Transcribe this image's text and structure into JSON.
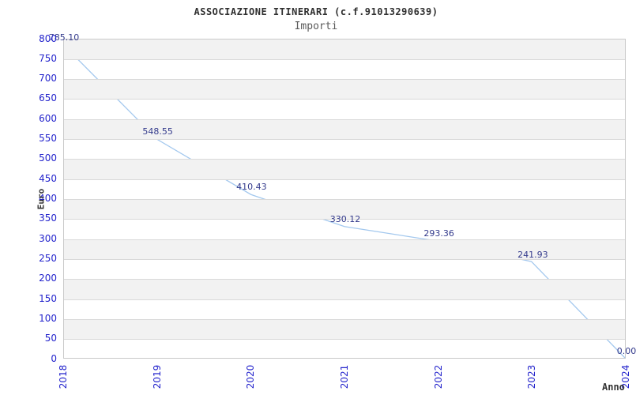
{
  "title": "ASSOCIAZIONE ITINERARI (c.f.91013290639)",
  "subtitle": "Importi",
  "chart_data": {
    "type": "line",
    "categories": [
      "2018",
      "2019",
      "2020",
      "2021",
      "2022",
      "2023",
      "2024"
    ],
    "values": [
      785.1,
      548.55,
      410.43,
      330.12,
      293.36,
      241.93,
      0.0
    ],
    "data_labels": [
      "785.10",
      "548.55",
      "410.43",
      "330.12",
      "293.36",
      "241.93",
      "0.00"
    ],
    "title": "ASSOCIAZIONE ITINERARI (c.f.91013290639)",
    "subtitle": "Importi",
    "xlabel": "Anno",
    "ylabel": "Euro",
    "ylim": [
      0,
      800
    ],
    "ytick_step": 50,
    "grid": "horizontal, alternating shaded bands every 50",
    "legend_position": "none"
  },
  "colors": {
    "line": "#a3c8ee",
    "tick_label": "#2323cc",
    "data_label": "#333a8c",
    "band": "#f2f2f2",
    "grid": "#d9d9d9",
    "border": "#c9c9c9",
    "title": "#2f2f2f",
    "subtitle": "#5a5a5a",
    "axis_title": "#333333"
  }
}
